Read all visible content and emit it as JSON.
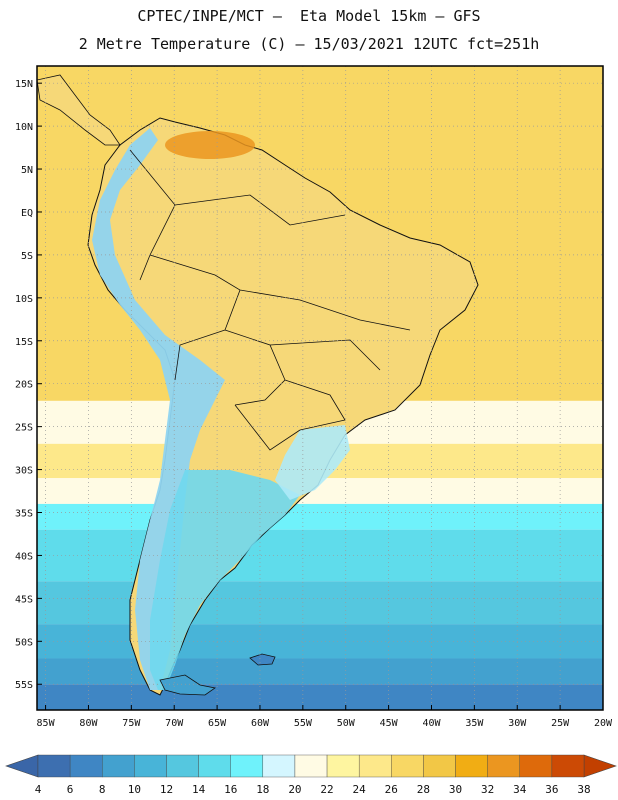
{
  "header": {
    "line1": "CPTEC/INPE/MCT –  Eta Model 15km – GFS",
    "line2": "2 Metre Temperature (C) – 15/03/2021 12UTC fct=251h"
  },
  "map": {
    "lon_range": [
      -86,
      -20
    ],
    "lat_range": [
      -58,
      17
    ],
    "lat_ticks": [
      {
        "value": 15,
        "label": "15N"
      },
      {
        "value": 10,
        "label": "10N"
      },
      {
        "value": 5,
        "label": "5N"
      },
      {
        "value": 0,
        "label": "EQ"
      },
      {
        "value": -5,
        "label": "5S"
      },
      {
        "value": -10,
        "label": "10S"
      },
      {
        "value": -15,
        "label": "15S"
      },
      {
        "value": -20,
        "label": "20S"
      },
      {
        "value": -25,
        "label": "25S"
      },
      {
        "value": -30,
        "label": "30S"
      },
      {
        "value": -35,
        "label": "35S"
      },
      {
        "value": -40,
        "label": "40S"
      },
      {
        "value": -45,
        "label": "45S"
      },
      {
        "value": -50,
        "label": "50S"
      },
      {
        "value": -55,
        "label": "55S"
      }
    ],
    "lon_ticks": [
      {
        "value": -85,
        "label": "85W"
      },
      {
        "value": -80,
        "label": "80W"
      },
      {
        "value": -75,
        "label": "75W"
      },
      {
        "value": -70,
        "label": "70W"
      },
      {
        "value": -65,
        "label": "65W"
      },
      {
        "value": -60,
        "label": "60W"
      },
      {
        "value": -55,
        "label": "55W"
      },
      {
        "value": -50,
        "label": "50W"
      },
      {
        "value": -45,
        "label": "45W"
      },
      {
        "value": -40,
        "label": "40W"
      },
      {
        "value": -35,
        "label": "35W"
      },
      {
        "value": -30,
        "label": "30W"
      },
      {
        "value": -25,
        "label": "25W"
      },
      {
        "value": -20,
        "label": "20W"
      }
    ],
    "grid": true,
    "bands": [
      {
        "lat_top": 17,
        "lat_bottom": -22,
        "temp": 26
      },
      {
        "lat_top": -22,
        "lat_bottom": -27,
        "temp": 20
      },
      {
        "lat_top": -27,
        "lat_bottom": -31,
        "temp": 24
      },
      {
        "lat_top": -31,
        "lat_bottom": -34,
        "temp": 20
      },
      {
        "lat_top": -34,
        "lat_bottom": -37,
        "temp": 16
      },
      {
        "lat_top": -37,
        "lat_bottom": -43,
        "temp": 14
      },
      {
        "lat_top": -43,
        "lat_bottom": -48,
        "temp": 12
      },
      {
        "lat_top": -48,
        "lat_bottom": -52,
        "temp": 10
      },
      {
        "lat_top": -52,
        "lat_bottom": -55,
        "temp": 8
      },
      {
        "lat_top": -55,
        "lat_bottom": -58,
        "temp": 6
      }
    ]
  },
  "colorbar": {
    "levels": [
      4,
      6,
      8,
      10,
      12,
      14,
      16,
      18,
      20,
      22,
      24,
      26,
      28,
      30,
      32,
      34,
      36,
      38
    ],
    "colors": [
      "#3d6fb0",
      "#3f86c4",
      "#43a1cf",
      "#48b4d8",
      "#55c7df",
      "#5fdceb",
      "#6ff2fb",
      "#d4f6ff",
      "#fffbe4",
      "#fef5a0",
      "#fde88a",
      "#f8d764",
      "#f2c746",
      "#f1ad14",
      "#eb9620",
      "#de6a0b",
      "#cc4a05"
    ],
    "low_color": "#3a66a8",
    "high_color": "#c24000"
  }
}
